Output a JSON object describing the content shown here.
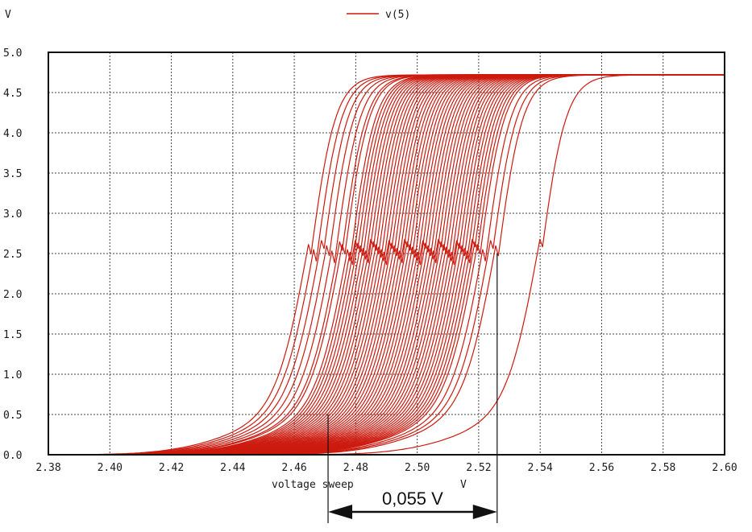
{
  "chart_data": {
    "type": "line",
    "title": "",
    "ylabel_top": "V",
    "legend": {
      "label": "v(5)",
      "color": "#cc1a0f",
      "placement": "top-center"
    },
    "xlabel": "voltage sweep",
    "xunit": "V",
    "xlim": [
      2.38,
      2.6
    ],
    "ylim": [
      0.0,
      5.0
    ],
    "grid": true,
    "x_ticks": [
      "2.38",
      "2.40",
      "2.42",
      "2.44",
      "2.46",
      "2.48",
      "2.50",
      "2.52",
      "2.54",
      "2.56",
      "2.58",
      "2.60"
    ],
    "y_ticks": [
      "0.0",
      "0.5",
      "1.0",
      "1.5",
      "2.0",
      "2.5",
      "3.0",
      "3.5",
      "4.0",
      "4.5",
      "5.0"
    ],
    "series_color": "#cc1a0f",
    "curve_model": {
      "v_low": 0.0,
      "v_high": 4.72,
      "transition_width_v": 0.0055
    },
    "series": [
      {
        "name": "v(5)",
        "threshold": 2.465
      },
      {
        "name": "v(5)",
        "threshold": 2.467
      },
      {
        "name": "v(5)",
        "threshold": 2.469
      },
      {
        "name": "v(5)",
        "threshold": 2.471
      },
      {
        "name": "v(5)",
        "threshold": 2.473
      },
      {
        "name": "v(5)",
        "threshold": 2.475
      },
      {
        "name": "v(5)",
        "threshold": 2.476
      },
      {
        "name": "v(5)",
        "threshold": 2.478
      },
      {
        "name": "v(5)",
        "threshold": 2.479
      },
      {
        "name": "v(5)",
        "threshold": 2.48
      },
      {
        "name": "v(5)",
        "threshold": 2.481
      },
      {
        "name": "v(5)",
        "threshold": 2.482
      },
      {
        "name": "v(5)",
        "threshold": 2.483
      },
      {
        "name": "v(5)",
        "threshold": 2.484
      },
      {
        "name": "v(5)",
        "threshold": 2.485
      },
      {
        "name": "v(5)",
        "threshold": 2.486
      },
      {
        "name": "v(5)",
        "threshold": 2.487
      },
      {
        "name": "v(5)",
        "threshold": 2.488
      },
      {
        "name": "v(5)",
        "threshold": 2.489
      },
      {
        "name": "v(5)",
        "threshold": 2.49
      },
      {
        "name": "v(5)",
        "threshold": 2.491
      },
      {
        "name": "v(5)",
        "threshold": 2.492
      },
      {
        "name": "v(5)",
        "threshold": 2.493
      },
      {
        "name": "v(5)",
        "threshold": 2.494
      },
      {
        "name": "v(5)",
        "threshold": 2.495
      },
      {
        "name": "v(5)",
        "threshold": 2.496
      },
      {
        "name": "v(5)",
        "threshold": 2.497
      },
      {
        "name": "v(5)",
        "threshold": 2.498
      },
      {
        "name": "v(5)",
        "threshold": 2.499
      },
      {
        "name": "v(5)",
        "threshold": 2.5
      },
      {
        "name": "v(5)",
        "threshold": 2.501
      },
      {
        "name": "v(5)",
        "threshold": 2.502
      },
      {
        "name": "v(5)",
        "threshold": 2.503
      },
      {
        "name": "v(5)",
        "threshold": 2.504
      },
      {
        "name": "v(5)",
        "threshold": 2.505
      },
      {
        "name": "v(5)",
        "threshold": 2.506
      },
      {
        "name": "v(5)",
        "threshold": 2.507
      },
      {
        "name": "v(5)",
        "threshold": 2.508
      },
      {
        "name": "v(5)",
        "threshold": 2.509
      },
      {
        "name": "v(5)",
        "threshold": 2.51
      },
      {
        "name": "v(5)",
        "threshold": 2.511
      },
      {
        "name": "v(5)",
        "threshold": 2.512
      },
      {
        "name": "v(5)",
        "threshold": 2.513
      },
      {
        "name": "v(5)",
        "threshold": 2.514
      },
      {
        "name": "v(5)",
        "threshold": 2.515
      },
      {
        "name": "v(5)",
        "threshold": 2.516
      },
      {
        "name": "v(5)",
        "threshold": 2.517
      },
      {
        "name": "v(5)",
        "threshold": 2.518
      },
      {
        "name": "v(5)",
        "threshold": 2.519
      },
      {
        "name": "v(5)",
        "threshold": 2.52
      },
      {
        "name": "v(5)",
        "threshold": 2.522
      },
      {
        "name": "v(5)",
        "threshold": 2.524
      },
      {
        "name": "v(5)",
        "threshold": 2.526
      },
      {
        "name": "v(5)",
        "threshold": 2.54
      }
    ],
    "annotation": {
      "text": "0,055 V",
      "x_from": 2.471,
      "x_to": 2.526,
      "style": "double-arrow"
    }
  }
}
